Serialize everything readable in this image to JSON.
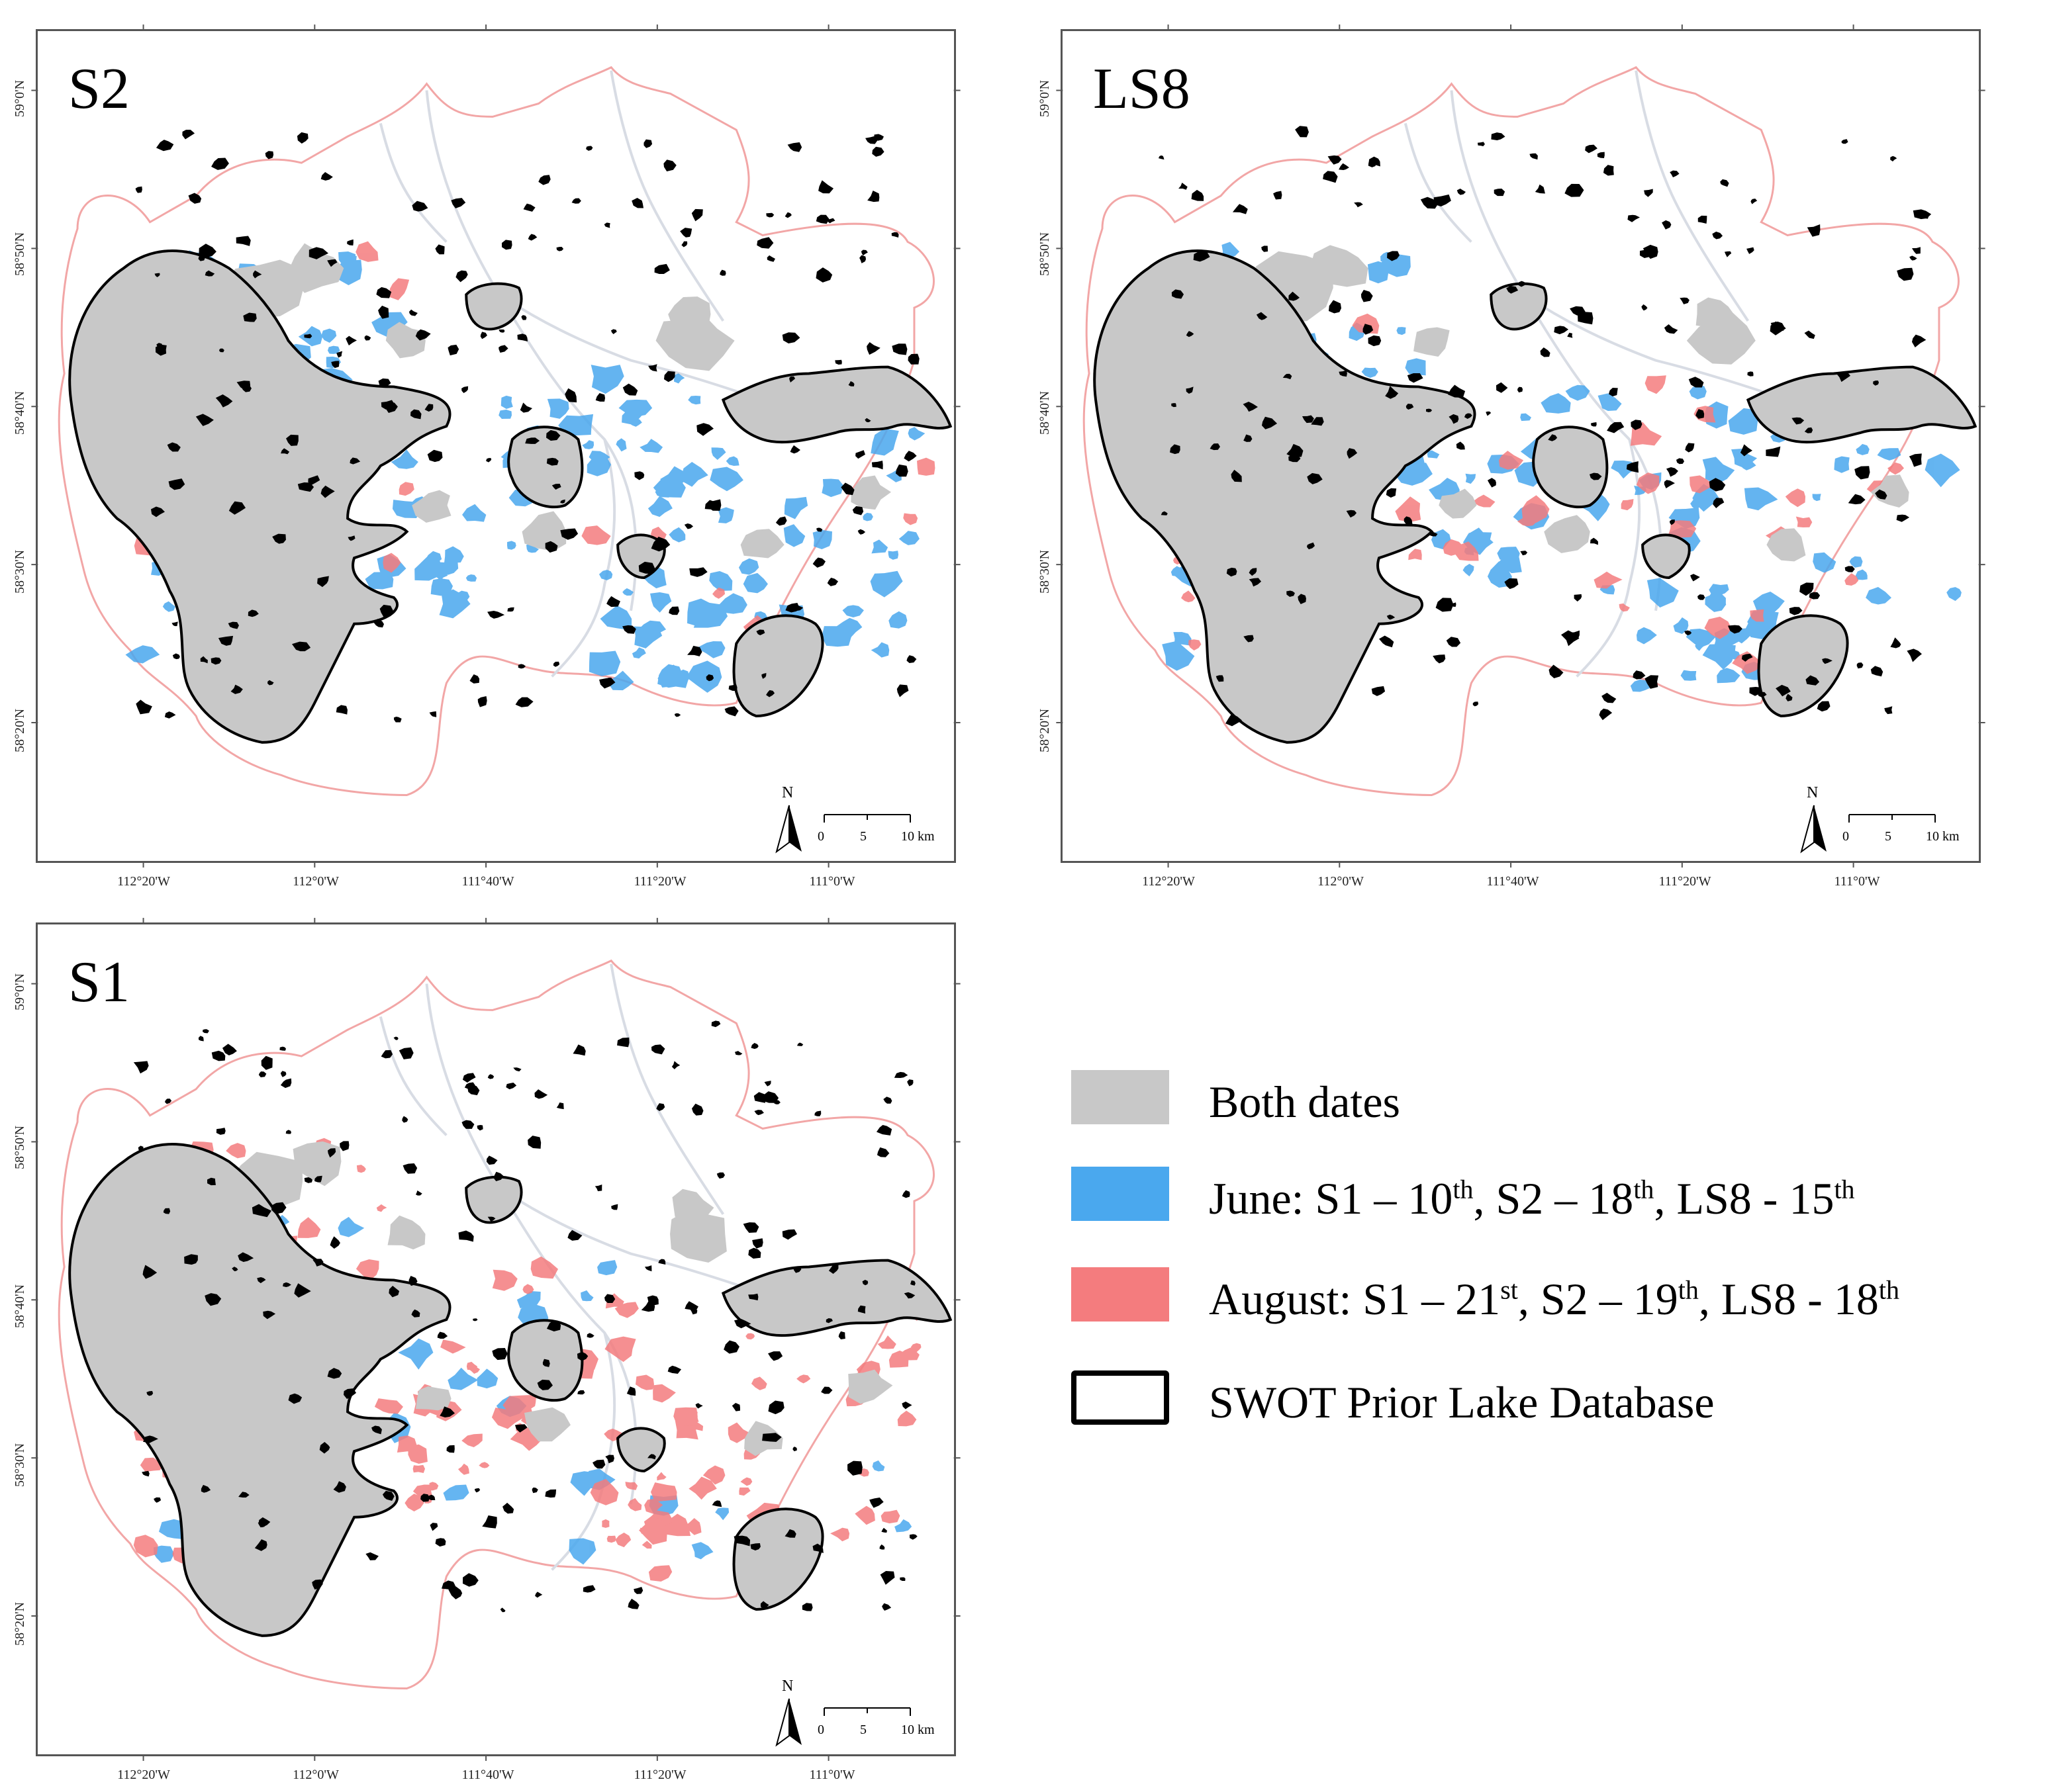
{
  "panels": [
    {
      "id": "s2",
      "title": "S2",
      "variant": "s2",
      "lat_labels": [
        "59°0'N",
        "58°50'N",
        "58°40'N",
        "58°30'N",
        "58°20'N"
      ],
      "lon_labels": [
        "112°20'W",
        "112°0'W",
        "111°40'W",
        "111°20'W",
        "111°0'W"
      ]
    },
    {
      "id": "ls8",
      "title": "LS8",
      "variant": "ls8",
      "lat_labels": [
        "59°0'N",
        "58°50'N",
        "58°40'N",
        "58°30'N",
        "58°20'N"
      ],
      "lon_labels": [
        "112°20'W",
        "112°0'W",
        "111°40'W",
        "111°20'W",
        "111°0'W"
      ]
    },
    {
      "id": "s1",
      "title": "S1",
      "variant": "s1",
      "lat_labels": [
        "59°0'N",
        "58°50'N",
        "58°40'N",
        "58°30'N",
        "58°20'N"
      ],
      "lon_labels": [
        "112°20'W",
        "112°0'W",
        "111°40'W",
        "111°20'W",
        "111°0'W"
      ]
    }
  ],
  "north_arrow": {
    "letter": "N"
  },
  "scalebar": {
    "ticks": [
      "0",
      "5",
      "10 km"
    ]
  },
  "legend": {
    "both": {
      "label": "Both dates",
      "color": "#c8c8c8"
    },
    "june": {
      "prefix": "June: S1 – 10",
      "s1sup": "th",
      "mid1": ", S2 – 18",
      "s2sup": "th",
      "mid2": ", LS8 - 15",
      "ls8sup": "th",
      "color": "#4aa8ee"
    },
    "august": {
      "prefix": "August: S1 – 21",
      "s1sup": "st",
      "mid1": ", S2 – 19",
      "s2sup": "th",
      "mid2": ", LS8 - 18",
      "ls8sup": "th",
      "color": "#f47c7e"
    },
    "swot": {
      "label": "SWOT Prior Lake Database",
      "color": "#000000"
    }
  },
  "colors": {
    "both": "#c8c8c8",
    "june": "#4aa8ee",
    "august": "#f47c7e",
    "boundary": "#f2a6a6",
    "river": "#d8dce4",
    "swot": "#000000"
  }
}
